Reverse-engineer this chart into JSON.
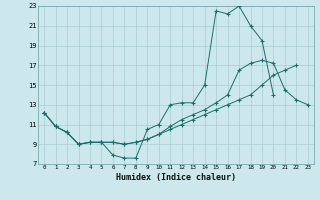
{
  "title": "",
  "xlabel": "Humidex (Indice chaleur)",
  "bg_color": "#cce8ec",
  "grid_color": "#aaccd4",
  "line_color": "#1a6e6a",
  "xlim": [
    -0.5,
    23.5
  ],
  "ylim": [
    7,
    23
  ],
  "xticks": [
    0,
    1,
    2,
    3,
    4,
    5,
    6,
    7,
    8,
    9,
    10,
    11,
    12,
    13,
    14,
    15,
    16,
    17,
    18,
    19,
    20,
    21,
    22,
    23
  ],
  "yticks": [
    7,
    9,
    11,
    13,
    15,
    17,
    19,
    21,
    23
  ],
  "series1_x": [
    0,
    1,
    2,
    3,
    4,
    5,
    6,
    7,
    8,
    9,
    10,
    11,
    12,
    13,
    14,
    15,
    16,
    17,
    18,
    19,
    20
  ],
  "series1_y": [
    12.2,
    10.8,
    10.2,
    9.0,
    9.2,
    9.2,
    7.9,
    7.6,
    7.6,
    10.5,
    11.0,
    13.0,
    13.2,
    13.2,
    15.0,
    22.5,
    22.2,
    23.0,
    21.0,
    19.5,
    14.0
  ],
  "series2_x": [
    0,
    1,
    2,
    3,
    4,
    5,
    6,
    7,
    8,
    9,
    10,
    11,
    12,
    13,
    14,
    15,
    16,
    17,
    18,
    19,
    20,
    21,
    22,
    23
  ],
  "series2_y": [
    12.2,
    10.8,
    10.2,
    9.0,
    9.2,
    9.2,
    9.2,
    9.0,
    9.2,
    9.5,
    10.0,
    10.8,
    11.5,
    12.0,
    12.5,
    13.2,
    14.0,
    16.5,
    17.2,
    17.5,
    17.2,
    14.5,
    13.5,
    13.0
  ],
  "series3_x": [
    0,
    1,
    2,
    3,
    4,
    5,
    6,
    7,
    8,
    9,
    10,
    11,
    12,
    13,
    14,
    15,
    16,
    17,
    18,
    19,
    20,
    21,
    22,
    23
  ],
  "series3_y": [
    12.2,
    10.8,
    10.2,
    9.0,
    9.2,
    9.2,
    9.2,
    9.0,
    9.2,
    9.5,
    10.0,
    10.5,
    11.0,
    11.5,
    12.0,
    12.5,
    13.0,
    13.5,
    14.0,
    15.0,
    16.0,
    16.5,
    17.0,
    null
  ]
}
